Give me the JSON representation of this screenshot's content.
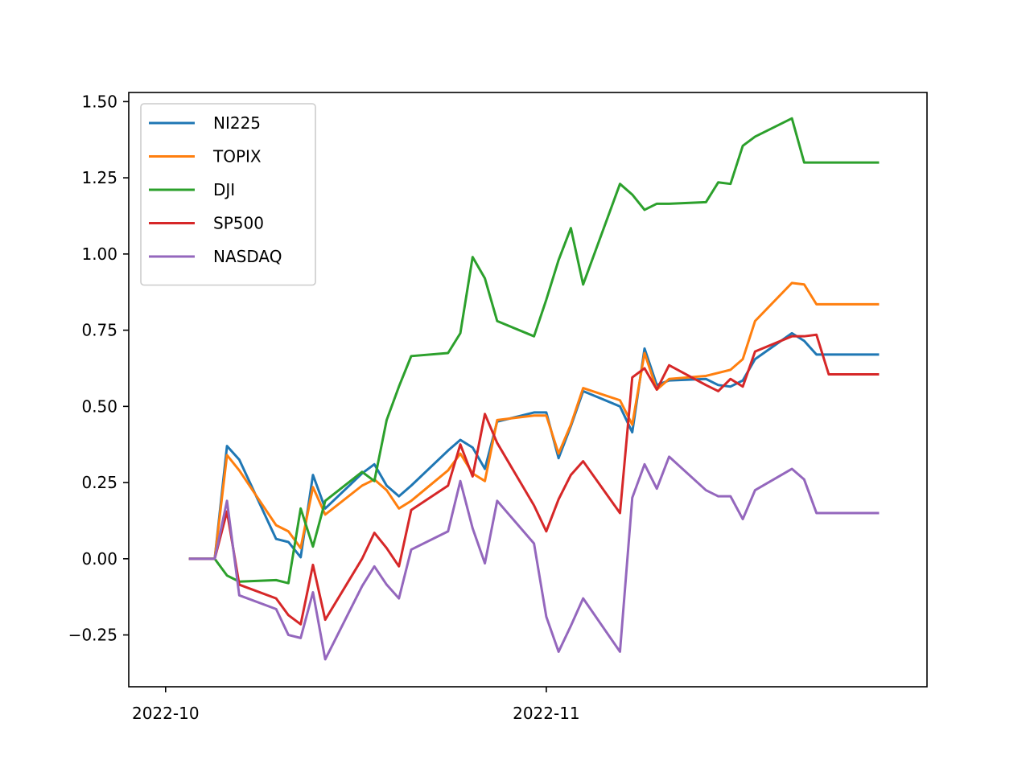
{
  "chart_data": {
    "type": "line",
    "title": "",
    "xlabel": "",
    "ylabel": "",
    "x": [
      "2022-10-03",
      "2022-10-04",
      "2022-10-05",
      "2022-10-06",
      "2022-10-07",
      "2022-10-10",
      "2022-10-11",
      "2022-10-12",
      "2022-10-13",
      "2022-10-14",
      "2022-10-17",
      "2022-10-18",
      "2022-10-19",
      "2022-10-20",
      "2022-10-21",
      "2022-10-24",
      "2022-10-25",
      "2022-10-26",
      "2022-10-27",
      "2022-10-28",
      "2022-10-31",
      "2022-11-01",
      "2022-11-02",
      "2022-11-03",
      "2022-11-04",
      "2022-11-07",
      "2022-11-08",
      "2022-11-09",
      "2022-11-10",
      "2022-11-11",
      "2022-11-14",
      "2022-11-15",
      "2022-11-16",
      "2022-11-17",
      "2022-11-18",
      "2022-11-21",
      "2022-11-22",
      "2022-11-23",
      "2022-11-24",
      "2022-11-25",
      "2022-11-28"
    ],
    "series": [
      {
        "name": "NI225",
        "color": "#1f77b4",
        "values": [
          0,
          0,
          0,
          0.37,
          0.325,
          0.065,
          0.055,
          0.005,
          0.275,
          0.165,
          0.28,
          0.31,
          0.24,
          0.205,
          0.24,
          0.355,
          0.39,
          0.365,
          0.295,
          0.45,
          0.48,
          0.48,
          0.33,
          0.435,
          0.55,
          0.5,
          0.415,
          0.69,
          0.57,
          0.585,
          0.59,
          0.57,
          0.565,
          0.585,
          0.655,
          0.74,
          0.715,
          0.67,
          0.67,
          0.67,
          0.67
        ]
      },
      {
        "name": "TOPIX",
        "color": "#ff7f0e",
        "values": [
          0,
          0,
          0,
          0.34,
          0.29,
          0.11,
          0.09,
          0.035,
          0.235,
          0.145,
          0.24,
          0.26,
          0.225,
          0.165,
          0.19,
          0.29,
          0.345,
          0.28,
          0.255,
          0.455,
          0.47,
          0.47,
          0.345,
          0.44,
          0.56,
          0.52,
          0.44,
          0.675,
          0.555,
          0.59,
          0.6,
          0.61,
          0.62,
          0.655,
          0.78,
          0.905,
          0.9,
          0.835,
          0.835,
          0.835,
          0.835
        ]
      },
      {
        "name": "DJI",
        "color": "#2ca02c",
        "values": [
          0,
          0,
          0,
          -0.055,
          -0.075,
          -0.07,
          -0.08,
          0.165,
          0.04,
          0.19,
          0.285,
          0.255,
          0.455,
          0.565,
          0.665,
          0.675,
          0.74,
          0.99,
          0.92,
          0.78,
          0.73,
          0.85,
          0.98,
          1.085,
          0.9,
          1.23,
          1.195,
          1.145,
          1.165,
          1.165,
          1.17,
          1.235,
          1.23,
          1.355,
          1.385,
          1.445,
          1.3,
          1.3,
          1.3,
          1.3,
          1.3
        ]
      },
      {
        "name": "SP500",
        "color": "#d62728",
        "values": [
          0,
          0,
          0,
          0.155,
          -0.085,
          -0.13,
          -0.185,
          -0.215,
          -0.02,
          -0.2,
          0,
          0.085,
          0.035,
          -0.025,
          0.16,
          0.24,
          0.375,
          0.27,
          0.475,
          0.38,
          0.175,
          0.09,
          0.195,
          0.275,
          0.32,
          0.15,
          0.595,
          0.625,
          0.555,
          0.635,
          0.57,
          0.55,
          0.59,
          0.565,
          0.68,
          0.73,
          0.73,
          0.735,
          0.605,
          0.605,
          0.605
        ]
      },
      {
        "name": "NASDAQ",
        "color": "#9467bd",
        "values": [
          0,
          0,
          0,
          0.19,
          -0.12,
          -0.165,
          -0.25,
          -0.26,
          -0.11,
          -0.33,
          -0.09,
          -0.025,
          -0.085,
          -0.13,
          0.03,
          0.09,
          0.255,
          0.1,
          -0.015,
          0.19,
          0.05,
          -0.19,
          -0.305,
          -0.22,
          -0.13,
          -0.305,
          0.2,
          0.31,
          0.23,
          0.335,
          0.225,
          0.205,
          0.205,
          0.13,
          0.225,
          0.295,
          0.26,
          0.15,
          0.15,
          0.15,
          0.15
        ]
      }
    ],
    "xlim": [
      "2022-09-28",
      "2022-12-02"
    ],
    "ylim": [
      -0.42,
      1.53
    ],
    "xticks": [
      {
        "date": "2022-10-01",
        "label": "2022-10"
      },
      {
        "date": "2022-11-01",
        "label": "2022-11"
      }
    ],
    "yticks": [
      {
        "value": -0.25,
        "label": "−0.25"
      },
      {
        "value": 0,
        "label": "0.00"
      },
      {
        "value": 0.25,
        "label": "0.25"
      },
      {
        "value": 0.5,
        "label": "0.50"
      },
      {
        "value": 0.75,
        "label": "0.75"
      },
      {
        "value": 1,
        "label": "1.00"
      },
      {
        "value": 1.25,
        "label": "1.25"
      },
      {
        "value": 1.5,
        "label": "1.50"
      }
    ],
    "grid": false,
    "legend_position": "upper-left"
  }
}
